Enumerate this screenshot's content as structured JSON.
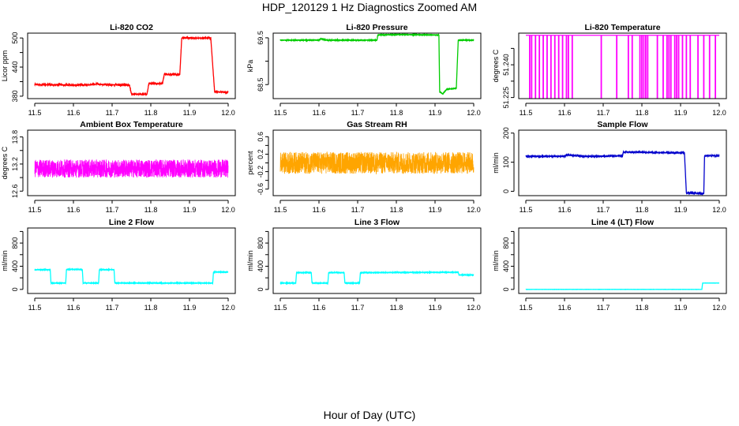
{
  "figure": {
    "title": "HDP_120129  1 Hz Diagnostics Zoomed AM",
    "xlabel": "Hour of Day (UTC)"
  },
  "chart_data": [
    {
      "type": "line",
      "title": "Li-820 CO2",
      "ylabel": "Licor ppm",
      "color": "#ff0000",
      "xlim": [
        11.5,
        12.0
      ],
      "ylim": [
        375,
        510
      ],
      "xticks": [
        "11.5",
        "11.6",
        "11.7",
        "11.8",
        "11.9",
        "12.0"
      ],
      "yticks": [
        380,
        440,
        500
      ],
      "ytick_labels": [
        "380",
        "440",
        "500"
      ],
      "minor_yticks": [
        410,
        470
      ],
      "minor_ytick_labels": [
        "",
        ""
      ],
      "series": [
        {
          "x": [
            11.5,
            11.605,
            11.655,
            11.66,
            11.665,
            11.745,
            11.75,
            11.79,
            11.795,
            11.83,
            11.835,
            11.875,
            11.88,
            11.955,
            11.965,
            12.0
          ],
          "y": [
            404,
            403,
            404,
            406,
            404,
            403,
            384,
            384,
            406,
            406,
            425,
            425,
            500,
            500,
            389,
            388
          ]
        }
      ],
      "noise": 1.2
    },
    {
      "type": "line",
      "title": "Li-820 Pressure",
      "ylabel": "kPa",
      "color": "#00cc00",
      "xlim": [
        11.5,
        12.0
      ],
      "ylim": [
        68.2,
        69.6
      ],
      "xticks": [
        "11.5",
        "11.6",
        "11.7",
        "11.8",
        "11.9",
        "12.0"
      ],
      "yticks": [
        68.5,
        69.5
      ],
      "ytick_labels": [
        "68.5",
        "69.5"
      ],
      "minor_yticks": [
        69.0
      ],
      "minor_ytick_labels": [
        ""
      ],
      "series": [
        {
          "x": [
            11.5,
            11.6,
            11.605,
            11.62,
            11.75,
            11.752,
            11.8,
            11.91,
            11.912,
            11.92,
            11.93,
            11.955,
            11.96,
            12.0
          ],
          "y": [
            69.45,
            69.45,
            69.48,
            69.45,
            69.45,
            69.56,
            69.57,
            69.56,
            68.35,
            68.3,
            68.4,
            68.42,
            69.45,
            69.45
          ]
        }
      ],
      "noise": 0.005
    },
    {
      "type": "line",
      "title": "Li-820 Temperature",
      "ylabel": "degrees C",
      "color": "#ff00ff",
      "xlim": [
        11.5,
        12.0
      ],
      "ylim": [
        51.2245,
        51.2545
      ],
      "xticks": [
        "11.5",
        "11.6",
        "11.7",
        "11.8",
        "11.9",
        "12.0"
      ],
      "yticks": [
        51.225,
        51.24
      ],
      "ytick_labels": [
        "51.225",
        "51.240"
      ],
      "minor_yticks": [
        51.2325,
        51.2475
      ],
      "minor_ytick_labels": [
        "",
        ""
      ],
      "series": [
        {
          "x": [
            11.5,
            12.0
          ],
          "y": [
            51.2535,
            51.2535
          ]
        }
      ],
      "spikes": {
        "low": 51.2245,
        "x": [
          11.51,
          11.515,
          11.525,
          11.535,
          11.545,
          11.555,
          11.565,
          11.575,
          11.585,
          11.595,
          11.605,
          11.61,
          11.62,
          11.695,
          11.735,
          11.765,
          11.775,
          11.795,
          11.8,
          11.805,
          11.81,
          11.815,
          11.84,
          11.855,
          11.865,
          11.87,
          11.875,
          11.885,
          11.89,
          11.895,
          11.905,
          11.915,
          11.925,
          11.945,
          11.96,
          11.975,
          11.99
        ]
      },
      "noise": 0
    },
    {
      "type": "line",
      "title": "Ambient Box Temperature",
      "ylabel": "degrees C",
      "color": "#ff00ff",
      "xlim": [
        11.5,
        12.0
      ],
      "ylim": [
        12.5,
        13.95
      ],
      "xticks": [
        "11.5",
        "11.6",
        "11.7",
        "11.8",
        "11.9",
        "12.0"
      ],
      "yticks": [
        12.6,
        13.2,
        13.8
      ],
      "ytick_labels": [
        "12.6",
        "13.2",
        "13.8"
      ],
      "minor_yticks": [
        12.9,
        13.5
      ],
      "minor_ytick_labels": [
        "",
        ""
      ],
      "series": [
        {
          "x": [
            11.5,
            12.0
          ],
          "y": [
            13.1,
            13.1
          ]
        }
      ],
      "noise": 0.2
    },
    {
      "type": "line",
      "title": "Gas Stream RH",
      "ylabel": "percent",
      "color": "#ffa500",
      "xlim": [
        11.5,
        12.0
      ],
      "ylim": [
        -0.75,
        0.75
      ],
      "xticks": [
        "11.5",
        "11.6",
        "11.7",
        "11.8",
        "11.9",
        "12.0"
      ],
      "yticks": [
        -0.6,
        -0.2,
        0.2,
        0.6
      ],
      "ytick_labels": [
        "-0.6",
        "-0.2",
        "0.2",
        "0.6"
      ],
      "minor_yticks": [
        -0.4,
        0.0,
        0.4
      ],
      "minor_ytick_labels": [
        "",
        "",
        ""
      ],
      "series": [
        {
          "x": [
            11.5,
            12.0
          ],
          "y": [
            0.0,
            0.0
          ]
        }
      ],
      "noise": 0.25
    },
    {
      "type": "line",
      "title": "Sample Flow",
      "ylabel": "ml/min",
      "color": "#0000cc",
      "xlim": [
        11.5,
        12.0
      ],
      "ylim": [
        -15,
        210
      ],
      "xticks": [
        "11.5",
        "11.6",
        "11.7",
        "11.8",
        "11.9",
        "12.0"
      ],
      "yticks": [
        0,
        100,
        200
      ],
      "ytick_labels": [
        "0",
        "100",
        "200"
      ],
      "series": [
        {
          "x": [
            11.5,
            11.6,
            11.605,
            11.65,
            11.7,
            11.75,
            11.752,
            11.91,
            11.915,
            11.96,
            11.962,
            12.0
          ],
          "y": [
            120,
            120,
            125,
            120,
            120,
            122,
            135,
            132,
            -5,
            -8,
            122,
            122
          ]
        }
      ],
      "noise": 1.5
    },
    {
      "type": "line",
      "title": "Line 2 Flow",
      "ylabel": "ml/min",
      "color": "#00ffff",
      "xlim": [
        11.5,
        12.0
      ],
      "ylim": [
        -70,
        1060
      ],
      "xticks": [
        "11.5",
        "11.6",
        "11.7",
        "11.8",
        "11.9",
        "12.0"
      ],
      "yticks": [
        0,
        400,
        800
      ],
      "ytick_labels": [
        "0",
        "400",
        "800"
      ],
      "minor_yticks": [
        200,
        600,
        1000
      ],
      "minor_ytick_labels": [
        "",
        "",
        ""
      ],
      "series": [
        {
          "x": [
            11.5,
            11.54,
            11.542,
            11.58,
            11.582,
            11.623,
            11.625,
            11.665,
            11.667,
            11.705,
            11.707,
            11.96,
            11.962,
            12.0
          ],
          "y": [
            340,
            340,
            110,
            110,
            345,
            345,
            110,
            110,
            340,
            340,
            110,
            110,
            300,
            300
          ]
        }
      ],
      "noise": 4
    },
    {
      "type": "line",
      "title": "Line 3 Flow",
      "ylabel": "ml/min",
      "color": "#00ffff",
      "xlim": [
        11.5,
        12.0
      ],
      "ylim": [
        -70,
        1060
      ],
      "xticks": [
        "11.5",
        "11.6",
        "11.7",
        "11.8",
        "11.9",
        "12.0"
      ],
      "yticks": [
        0,
        400,
        800
      ],
      "ytick_labels": [
        "0",
        "400",
        "800"
      ],
      "minor_yticks": [
        200,
        600,
        1000
      ],
      "minor_ytick_labels": [
        "",
        "",
        ""
      ],
      "series": [
        {
          "x": [
            11.5,
            11.54,
            11.542,
            11.58,
            11.582,
            11.623,
            11.625,
            11.665,
            11.667,
            11.705,
            11.707,
            11.96,
            11.962,
            12.0
          ],
          "y": [
            110,
            110,
            290,
            290,
            110,
            110,
            290,
            290,
            110,
            110,
            290,
            295,
            250,
            250
          ]
        }
      ],
      "noise": 4
    },
    {
      "type": "line",
      "title": "Line 4 (LT) Flow",
      "ylabel": "ml/min",
      "color": "#00ffff",
      "xlim": [
        11.5,
        12.0
      ],
      "ylim": [
        -70,
        1060
      ],
      "xticks": [
        "11.5",
        "11.6",
        "11.7",
        "11.8",
        "11.9",
        "12.0"
      ],
      "yticks": [
        0,
        400,
        800
      ],
      "ytick_labels": [
        "0",
        "400",
        "800"
      ],
      "minor_yticks": [
        200,
        600,
        1000
      ],
      "minor_ytick_labels": [
        "",
        "",
        ""
      ],
      "series": [
        {
          "x": [
            11.5,
            11.955,
            11.957,
            12.0
          ],
          "y": [
            0,
            0,
            110,
            110
          ]
        }
      ],
      "noise": 1
    }
  ]
}
